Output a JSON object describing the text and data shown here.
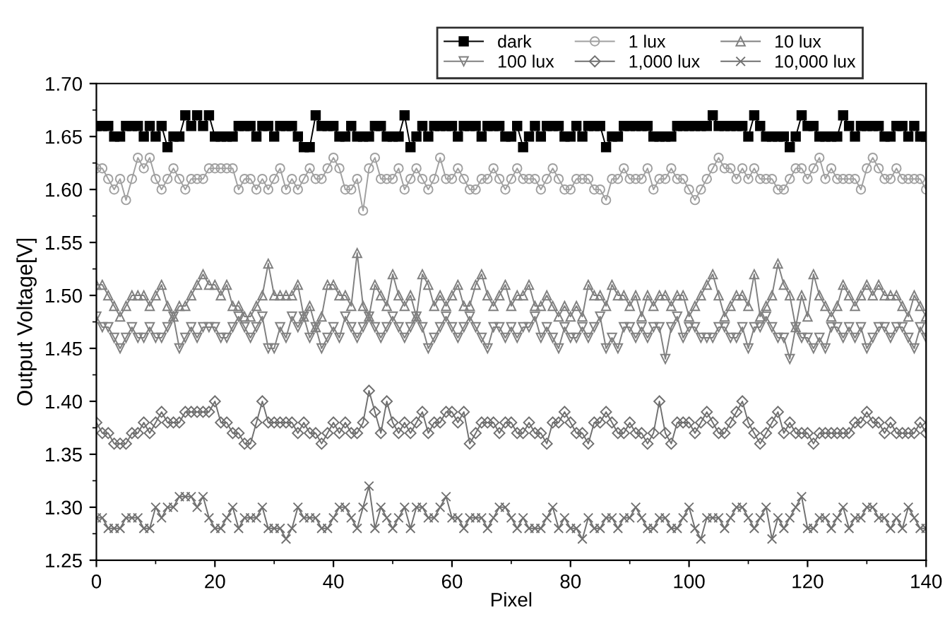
{
  "chart_data": {
    "type": "line",
    "xlabel": "Pixel",
    "ylabel": "Output Voltage[V]",
    "x": [
      0,
      1,
      2,
      3,
      4,
      5,
      6,
      7,
      8,
      9,
      10,
      11,
      12,
      13,
      14,
      15,
      16,
      17,
      18,
      19,
      20,
      21,
      22,
      23,
      24,
      25,
      26,
      27,
      28,
      29,
      30,
      31,
      32,
      33,
      34,
      35,
      36,
      37,
      38,
      39,
      40,
      41,
      42,
      43,
      44,
      45,
      46,
      47,
      48,
      49,
      50,
      51,
      52,
      53,
      54,
      55,
      56,
      57,
      58,
      59,
      60,
      61,
      62,
      63,
      64,
      65,
      66,
      67,
      68,
      69,
      70,
      71,
      72,
      73,
      74,
      75,
      76,
      77,
      78,
      79,
      80,
      81,
      82,
      83,
      84,
      85,
      86,
      87,
      88,
      89,
      90,
      91,
      92,
      93,
      94,
      95,
      96,
      97,
      98,
      99,
      100,
      101,
      102,
      103,
      104,
      105,
      106,
      107,
      108,
      109,
      110,
      111,
      112,
      113,
      114,
      115,
      116,
      117,
      118,
      119,
      120,
      121,
      122,
      123,
      124,
      125,
      126,
      127,
      128,
      129,
      130,
      131,
      132,
      133,
      134,
      135,
      136,
      137,
      138,
      139,
      140
    ],
    "xlim": [
      0,
      140
    ],
    "xticks": [
      0,
      20,
      40,
      60,
      80,
      100,
      120,
      140
    ],
    "ylim": [
      1.25,
      1.7
    ],
    "yticks": [
      {
        "value": 1.25,
        "label": "1.25"
      },
      {
        "value": 1.3,
        "label": "1.30"
      },
      {
        "value": 1.35,
        "label": "1.35"
      },
      {
        "value": 1.4,
        "label": "1.40"
      },
      {
        "value": 1.45,
        "label": "1.45"
      },
      {
        "value": 1.5,
        "label": "1.50"
      },
      {
        "value": 1.55,
        "label": "1.55"
      },
      {
        "value": 1.6,
        "label": "1.60"
      },
      {
        "value": 1.65,
        "label": "1.65"
      },
      {
        "value": 1.7,
        "label": "1.70"
      }
    ],
    "grid": false,
    "legend": "top right",
    "line_style": "solid",
    "series": [
      {
        "name": "dark",
        "color": "#000000",
        "marker": "square",
        "values": [
          1.66,
          1.66,
          1.66,
          1.65,
          1.65,
          1.66,
          1.66,
          1.66,
          1.65,
          1.66,
          1.65,
          1.66,
          1.64,
          1.65,
          1.65,
          1.67,
          1.66,
          1.67,
          1.66,
          1.67,
          1.65,
          1.65,
          1.65,
          1.65,
          1.66,
          1.66,
          1.66,
          1.65,
          1.66,
          1.66,
          1.65,
          1.66,
          1.66,
          1.66,
          1.65,
          1.64,
          1.64,
          1.67,
          1.66,
          1.66,
          1.66,
          1.65,
          1.65,
          1.66,
          1.65,
          1.65,
          1.65,
          1.66,
          1.66,
          1.65,
          1.65,
          1.65,
          1.67,
          1.64,
          1.65,
          1.66,
          1.65,
          1.66,
          1.66,
          1.66,
          1.66,
          1.65,
          1.66,
          1.66,
          1.66,
          1.65,
          1.66,
          1.66,
          1.66,
          1.65,
          1.65,
          1.66,
          1.64,
          1.65,
          1.66,
          1.65,
          1.66,
          1.66,
          1.66,
          1.65,
          1.65,
          1.66,
          1.65,
          1.66,
          1.66,
          1.66,
          1.64,
          1.65,
          1.65,
          1.66,
          1.66,
          1.66,
          1.66,
          1.66,
          1.65,
          1.65,
          1.65,
          1.65,
          1.66,
          1.66,
          1.66,
          1.66,
          1.66,
          1.66,
          1.67,
          1.66,
          1.66,
          1.66,
          1.66,
          1.66,
          1.65,
          1.67,
          1.66,
          1.65,
          1.65,
          1.65,
          1.65,
          1.64,
          1.65,
          1.67,
          1.66,
          1.66,
          1.65,
          1.65,
          1.65,
          1.65,
          1.67,
          1.66,
          1.65,
          1.66,
          1.66,
          1.66,
          1.66,
          1.65,
          1.65,
          1.66,
          1.66,
          1.65,
          1.66,
          1.65,
          1.65
        ]
      },
      {
        "name": "1 lux",
        "color": "#a0a0a0",
        "marker": "circle",
        "values": [
          1.62,
          1.62,
          1.61,
          1.6,
          1.61,
          1.59,
          1.61,
          1.63,
          1.62,
          1.63,
          1.61,
          1.6,
          1.61,
          1.62,
          1.61,
          1.6,
          1.61,
          1.61,
          1.61,
          1.62,
          1.62,
          1.62,
          1.62,
          1.62,
          1.6,
          1.61,
          1.61,
          1.6,
          1.61,
          1.6,
          1.61,
          1.62,
          1.6,
          1.61,
          1.6,
          1.61,
          1.62,
          1.61,
          1.61,
          1.62,
          1.63,
          1.62,
          1.6,
          1.6,
          1.61,
          1.58,
          1.62,
          1.63,
          1.61,
          1.61,
          1.61,
          1.62,
          1.6,
          1.61,
          1.62,
          1.61,
          1.6,
          1.61,
          1.63,
          1.61,
          1.61,
          1.62,
          1.61,
          1.6,
          1.6,
          1.61,
          1.61,
          1.62,
          1.61,
          1.6,
          1.61,
          1.62,
          1.61,
          1.61,
          1.61,
          1.6,
          1.61,
          1.62,
          1.61,
          1.6,
          1.6,
          1.61,
          1.61,
          1.61,
          1.6,
          1.6,
          1.59,
          1.61,
          1.61,
          1.62,
          1.61,
          1.61,
          1.61,
          1.62,
          1.6,
          1.61,
          1.61,
          1.62,
          1.61,
          1.61,
          1.6,
          1.59,
          1.6,
          1.61,
          1.62,
          1.63,
          1.62,
          1.62,
          1.61,
          1.62,
          1.61,
          1.62,
          1.61,
          1.61,
          1.61,
          1.6,
          1.6,
          1.61,
          1.62,
          1.62,
          1.61,
          1.62,
          1.63,
          1.61,
          1.62,
          1.61,
          1.61,
          1.61,
          1.61,
          1.6,
          1.62,
          1.63,
          1.62,
          1.61,
          1.61,
          1.62,
          1.61,
          1.61,
          1.61,
          1.61,
          1.6
        ]
      },
      {
        "name": "10 lux",
        "color": "#808080",
        "marker": "triangle",
        "values": [
          1.51,
          1.51,
          1.5,
          1.49,
          1.48,
          1.49,
          1.5,
          1.5,
          1.5,
          1.49,
          1.5,
          1.51,
          1.49,
          1.48,
          1.49,
          1.49,
          1.5,
          1.51,
          1.52,
          1.51,
          1.51,
          1.5,
          1.51,
          1.49,
          1.49,
          1.48,
          1.48,
          1.49,
          1.5,
          1.53,
          1.5,
          1.5,
          1.5,
          1.5,
          1.51,
          1.48,
          1.49,
          1.47,
          1.48,
          1.51,
          1.51,
          1.5,
          1.5,
          1.49,
          1.54,
          1.49,
          1.48,
          1.51,
          1.5,
          1.49,
          1.52,
          1.5,
          1.49,
          1.5,
          1.48,
          1.52,
          1.51,
          1.49,
          1.5,
          1.49,
          1.5,
          1.51,
          1.49,
          1.49,
          1.51,
          1.52,
          1.5,
          1.49,
          1.5,
          1.51,
          1.49,
          1.5,
          1.5,
          1.51,
          1.49,
          1.49,
          1.5,
          1.49,
          1.48,
          1.49,
          1.48,
          1.49,
          1.48,
          1.51,
          1.5,
          1.5,
          1.49,
          1.51,
          1.5,
          1.5,
          1.49,
          1.5,
          1.48,
          1.5,
          1.49,
          1.5,
          1.5,
          1.49,
          1.5,
          1.5,
          1.48,
          1.49,
          1.5,
          1.51,
          1.52,
          1.5,
          1.48,
          1.49,
          1.5,
          1.5,
          1.49,
          1.52,
          1.48,
          1.49,
          1.5,
          1.53,
          1.51,
          1.5,
          1.47,
          1.5,
          1.48,
          1.52,
          1.5,
          1.49,
          1.48,
          1.49,
          1.51,
          1.5,
          1.49,
          1.5,
          1.51,
          1.5,
          1.51,
          1.5,
          1.5,
          1.5,
          1.49,
          1.48,
          1.5,
          1.49,
          1.48
        ]
      },
      {
        "name": "100 lux",
        "color": "#808080",
        "marker": "triangle_down",
        "values": [
          1.48,
          1.47,
          1.47,
          1.46,
          1.45,
          1.46,
          1.47,
          1.46,
          1.46,
          1.47,
          1.46,
          1.46,
          1.47,
          1.48,
          1.45,
          1.46,
          1.47,
          1.46,
          1.47,
          1.47,
          1.47,
          1.46,
          1.46,
          1.47,
          1.48,
          1.47,
          1.46,
          1.47,
          1.48,
          1.45,
          1.45,
          1.47,
          1.46,
          1.48,
          1.47,
          1.48,
          1.46,
          1.47,
          1.45,
          1.46,
          1.47,
          1.46,
          1.48,
          1.47,
          1.46,
          1.47,
          1.48,
          1.47,
          1.46,
          1.47,
          1.48,
          1.47,
          1.46,
          1.47,
          1.48,
          1.47,
          1.45,
          1.46,
          1.47,
          1.48,
          1.47,
          1.46,
          1.47,
          1.48,
          1.47,
          1.46,
          1.45,
          1.47,
          1.47,
          1.46,
          1.47,
          1.46,
          1.47,
          1.47,
          1.48,
          1.46,
          1.47,
          1.46,
          1.45,
          1.47,
          1.46,
          1.46,
          1.47,
          1.46,
          1.47,
          1.48,
          1.45,
          1.46,
          1.45,
          1.47,
          1.47,
          1.46,
          1.47,
          1.46,
          1.47,
          1.47,
          1.44,
          1.47,
          1.48,
          1.46,
          1.47,
          1.47,
          1.46,
          1.46,
          1.46,
          1.47,
          1.47,
          1.46,
          1.46,
          1.47,
          1.45,
          1.47,
          1.47,
          1.48,
          1.47,
          1.46,
          1.46,
          1.44,
          1.47,
          1.46,
          1.46,
          1.45,
          1.46,
          1.45,
          1.47,
          1.47,
          1.46,
          1.47,
          1.46,
          1.47,
          1.45,
          1.46,
          1.47,
          1.47,
          1.46,
          1.47,
          1.47,
          1.46,
          1.45,
          1.47,
          1.46
        ]
      },
      {
        "name": "1,000 lux",
        "color": "#707070",
        "marker": "diamond",
        "values": [
          1.38,
          1.37,
          1.37,
          1.36,
          1.36,
          1.36,
          1.37,
          1.37,
          1.38,
          1.37,
          1.38,
          1.39,
          1.38,
          1.38,
          1.38,
          1.39,
          1.39,
          1.39,
          1.39,
          1.39,
          1.4,
          1.38,
          1.38,
          1.37,
          1.37,
          1.36,
          1.36,
          1.38,
          1.4,
          1.38,
          1.38,
          1.38,
          1.38,
          1.38,
          1.37,
          1.38,
          1.37,
          1.37,
          1.36,
          1.37,
          1.38,
          1.37,
          1.38,
          1.37,
          1.37,
          1.38,
          1.41,
          1.39,
          1.37,
          1.4,
          1.38,
          1.37,
          1.38,
          1.37,
          1.38,
          1.39,
          1.37,
          1.38,
          1.38,
          1.39,
          1.39,
          1.38,
          1.39,
          1.36,
          1.37,
          1.38,
          1.38,
          1.38,
          1.37,
          1.38,
          1.38,
          1.37,
          1.37,
          1.38,
          1.37,
          1.37,
          1.36,
          1.38,
          1.38,
          1.39,
          1.38,
          1.37,
          1.37,
          1.36,
          1.38,
          1.38,
          1.39,
          1.38,
          1.37,
          1.37,
          1.38,
          1.37,
          1.37,
          1.36,
          1.37,
          1.4,
          1.37,
          1.36,
          1.38,
          1.38,
          1.38,
          1.37,
          1.38,
          1.39,
          1.38,
          1.37,
          1.37,
          1.38,
          1.39,
          1.4,
          1.38,
          1.37,
          1.36,
          1.37,
          1.38,
          1.39,
          1.37,
          1.38,
          1.37,
          1.37,
          1.37,
          1.36,
          1.37,
          1.37,
          1.37,
          1.37,
          1.37,
          1.37,
          1.38,
          1.38,
          1.39,
          1.38,
          1.38,
          1.37,
          1.38,
          1.37,
          1.37,
          1.37,
          1.37,
          1.38,
          1.37
        ]
      },
      {
        "name": "10,000 lux",
        "color": "#707070",
        "marker": "cross",
        "values": [
          1.29,
          1.29,
          1.28,
          1.28,
          1.28,
          1.29,
          1.29,
          1.29,
          1.28,
          1.28,
          1.3,
          1.29,
          1.3,
          1.3,
          1.31,
          1.31,
          1.31,
          1.3,
          1.31,
          1.29,
          1.28,
          1.28,
          1.29,
          1.3,
          1.28,
          1.29,
          1.29,
          1.29,
          1.3,
          1.28,
          1.28,
          1.28,
          1.27,
          1.28,
          1.3,
          1.29,
          1.29,
          1.29,
          1.28,
          1.28,
          1.29,
          1.3,
          1.3,
          1.29,
          1.28,
          1.3,
          1.32,
          1.28,
          1.3,
          1.29,
          1.28,
          1.29,
          1.3,
          1.28,
          1.3,
          1.3,
          1.29,
          1.29,
          1.3,
          1.31,
          1.29,
          1.29,
          1.28,
          1.29,
          1.29,
          1.29,
          1.28,
          1.29,
          1.3,
          1.3,
          1.29,
          1.28,
          1.29,
          1.28,
          1.28,
          1.28,
          1.29,
          1.3,
          1.28,
          1.29,
          1.28,
          1.28,
          1.27,
          1.29,
          1.28,
          1.28,
          1.29,
          1.29,
          1.28,
          1.29,
          1.29,
          1.3,
          1.29,
          1.28,
          1.28,
          1.29,
          1.29,
          1.28,
          1.28,
          1.29,
          1.3,
          1.28,
          1.27,
          1.29,
          1.29,
          1.29,
          1.28,
          1.29,
          1.3,
          1.3,
          1.29,
          1.28,
          1.29,
          1.3,
          1.27,
          1.29,
          1.28,
          1.29,
          1.3,
          1.31,
          1.28,
          1.28,
          1.29,
          1.29,
          1.28,
          1.29,
          1.3,
          1.28,
          1.29,
          1.29,
          1.3,
          1.3,
          1.29,
          1.29,
          1.28,
          1.29,
          1.28,
          1.3,
          1.29,
          1.28,
          1.28
        ]
      }
    ]
  }
}
